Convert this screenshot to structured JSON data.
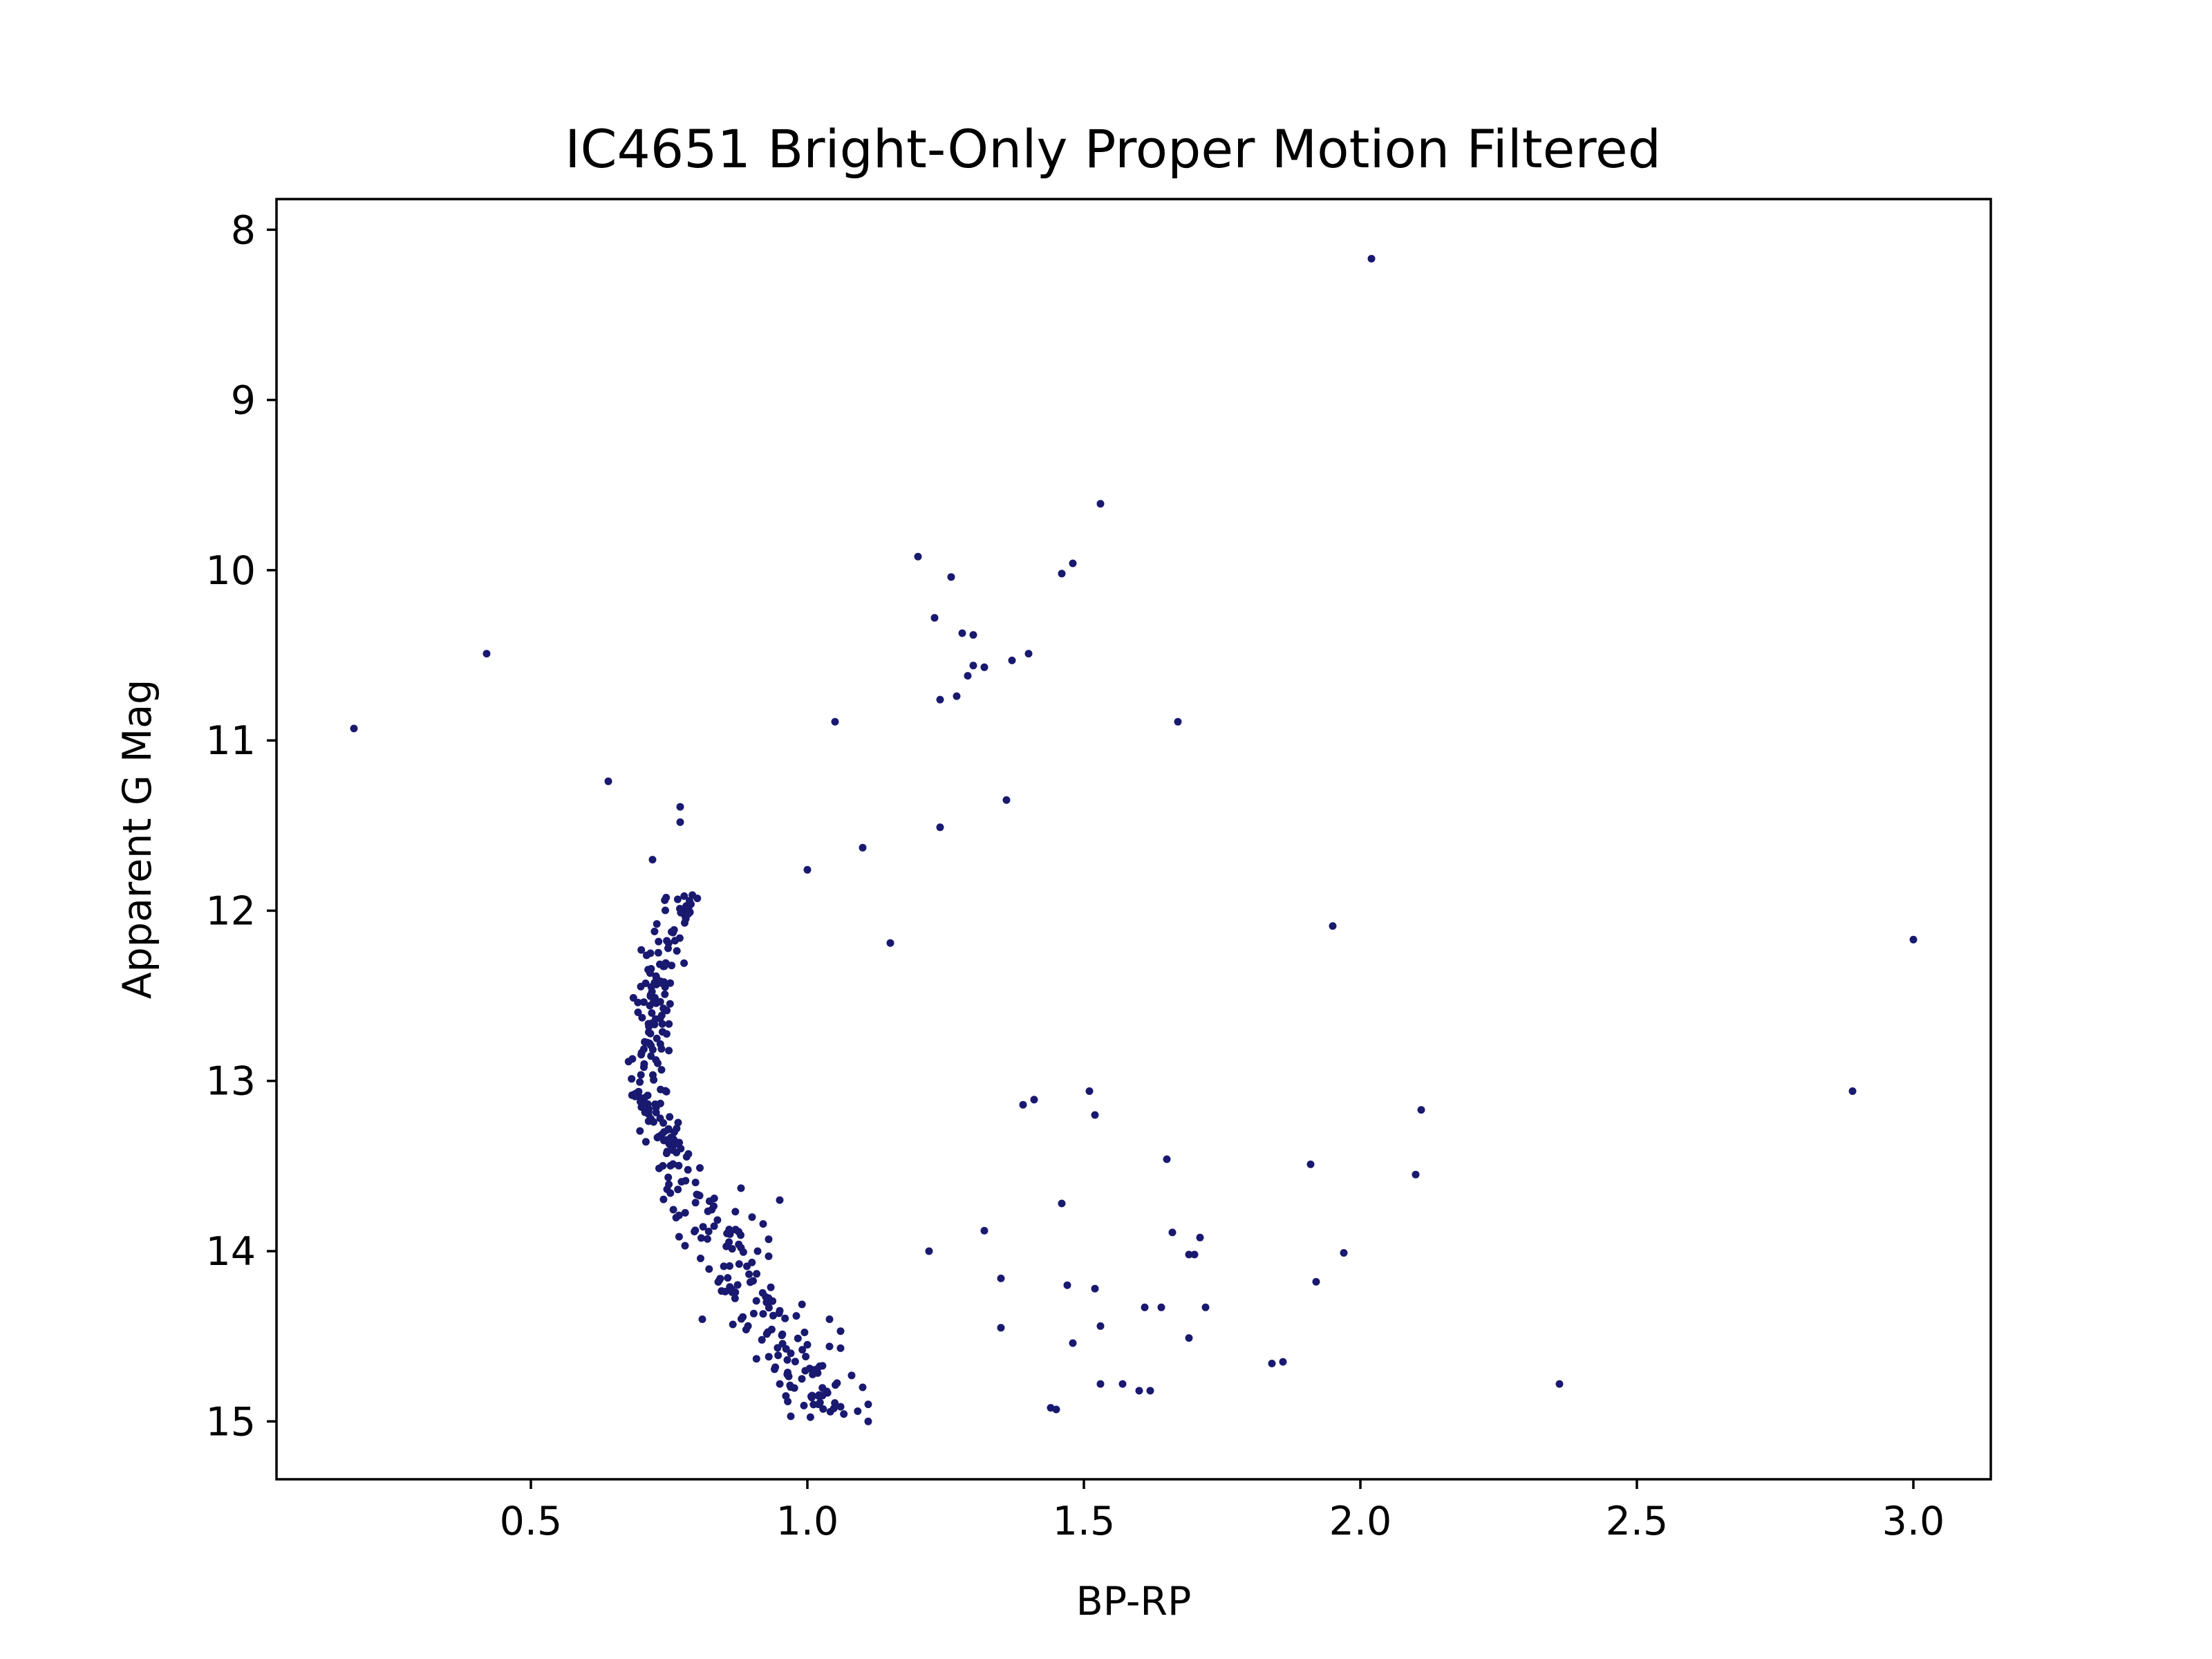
{
  "chart_data": {
    "type": "scatter",
    "title": "IC4651 Bright-Only Proper Motion Filtered",
    "xlabel": "BP-RP",
    "ylabel": "Apparent G Mag",
    "xlim": [
      0.04,
      3.14
    ],
    "ylim": [
      15.34,
      7.82
    ],
    "y_inverted": true,
    "grid": false,
    "legend": "none",
    "xticks": [
      0.5,
      1.0,
      1.5,
      2.0,
      2.5,
      3.0
    ],
    "xtick_labels": [
      "0.5",
      "1.0",
      "1.5",
      "2.0",
      "2.5",
      "3.0"
    ],
    "yticks": [
      8,
      9,
      10,
      11,
      12,
      13,
      14,
      15
    ],
    "ytick_labels": [
      "8",
      "9",
      "10",
      "11",
      "12",
      "13",
      "14",
      "15"
    ],
    "marker_color": "#191970",
    "series": [
      {
        "points": [
          [
            2.02,
            8.17
          ],
          [
            1.53,
            9.61
          ],
          [
            1.2,
            9.92
          ],
          [
            1.26,
            10.04
          ],
          [
            1.48,
            9.96
          ],
          [
            1.46,
            10.02
          ],
          [
            1.23,
            10.28
          ],
          [
            1.28,
            10.37
          ],
          [
            1.3,
            10.38
          ],
          [
            1.37,
            10.53
          ],
          [
            1.4,
            10.49
          ],
          [
            1.3,
            10.56
          ],
          [
            1.32,
            10.57
          ],
          [
            1.29,
            10.62
          ],
          [
            1.24,
            10.76
          ],
          [
            1.27,
            10.74
          ],
          [
            0.42,
            10.49
          ],
          [
            0.18,
            10.93
          ],
          [
            1.05,
            10.89
          ],
          [
            1.67,
            10.89
          ],
          [
            0.64,
            11.24
          ],
          [
            1.36,
            11.35
          ],
          [
            0.77,
            11.39
          ],
          [
            0.77,
            11.48
          ],
          [
            1.24,
            11.51
          ],
          [
            1.1,
            11.63
          ],
          [
            0.72,
            11.7
          ],
          [
            1.0,
            11.76
          ],
          [
            1.95,
            12.09
          ],
          [
            1.15,
            12.19
          ],
          [
            3.0,
            12.17
          ],
          [
            2.89,
            13.06
          ],
          [
            1.51,
            13.06
          ],
          [
            1.41,
            13.11
          ],
          [
            1.39,
            13.14
          ],
          [
            1.52,
            13.2
          ],
          [
            2.11,
            13.17
          ],
          [
            1.65,
            13.46
          ],
          [
            1.91,
            13.49
          ],
          [
            2.1,
            13.55
          ],
          [
            1.46,
            13.72
          ],
          [
            1.32,
            13.88
          ],
          [
            1.66,
            13.89
          ],
          [
            1.71,
            13.92
          ],
          [
            1.69,
            14.02
          ],
          [
            1.7,
            14.02
          ],
          [
            1.22,
            14.0
          ],
          [
            1.97,
            14.01
          ],
          [
            1.35,
            14.16
          ],
          [
            1.92,
            14.18
          ],
          [
            1.47,
            14.2
          ],
          [
            1.52,
            14.22
          ],
          [
            1.61,
            14.33
          ],
          [
            1.64,
            14.33
          ],
          [
            1.72,
            14.33
          ],
          [
            1.53,
            14.44
          ],
          [
            1.35,
            14.45
          ],
          [
            1.69,
            14.51
          ],
          [
            1.48,
            14.54
          ],
          [
            1.84,
            14.66
          ],
          [
            1.86,
            14.65
          ],
          [
            1.53,
            14.78
          ],
          [
            1.57,
            14.78
          ],
          [
            1.6,
            14.82
          ],
          [
            1.62,
            14.82
          ],
          [
            2.36,
            14.78
          ],
          [
            1.44,
            14.92
          ],
          [
            1.45,
            14.93
          ],
          [
            0.95,
            13.7
          ],
          [
            0.88,
            13.63
          ],
          [
            0.9,
            13.8
          ],
          [
            0.92,
            13.84
          ],
          [
            0.93,
            13.93
          ],
          [
            0.86,
            13.9
          ],
          [
            0.88,
            13.98
          ],
          [
            0.91,
            14.0
          ],
          [
            0.93,
            14.03
          ],
          [
            0.81,
            14.4
          ],
          [
            0.95,
            14.35
          ],
          [
            0.98,
            14.38
          ],
          [
            1.04,
            14.4
          ],
          [
            1.06,
            14.47
          ],
          [
            1.04,
            14.56
          ],
          [
            1.06,
            14.57
          ],
          [
            1.08,
            14.73
          ],
          [
            1.1,
            14.8
          ],
          [
            1.11,
            14.9
          ],
          [
            1.11,
            15.0
          ],
          [
            1.02,
            14.9
          ],
          [
            1.0,
            14.55
          ],
          [
            0.97,
            14.6
          ],
          [
            0.99,
            14.75
          ],
          [
            1.02,
            14.85
          ],
          [
            0.97,
            14.97
          ]
        ]
      }
    ]
  }
}
